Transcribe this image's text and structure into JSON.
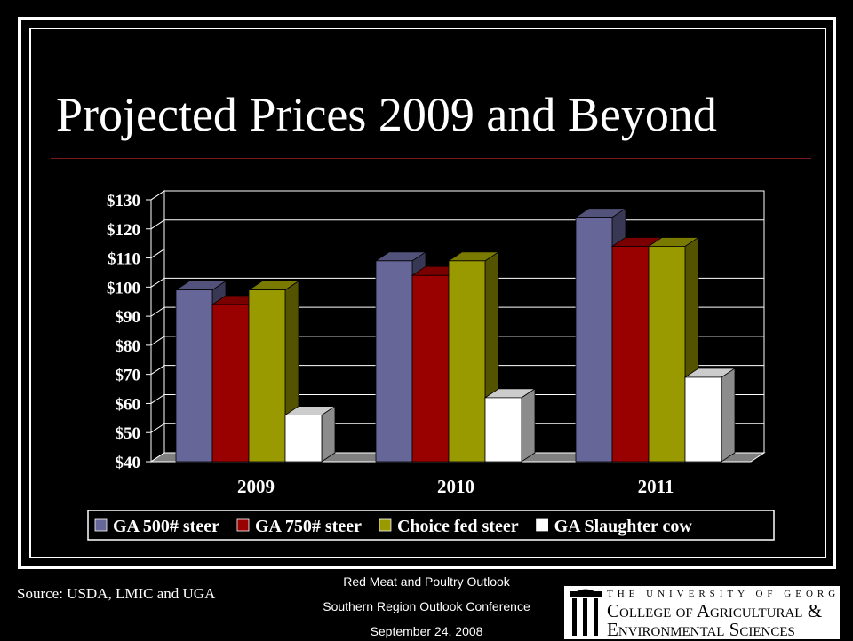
{
  "slide": {
    "title": "Projected Prices 2009 and Beyond",
    "source": "Source: USDA, LMIC and UGA",
    "conference": {
      "line1": "Red Meat and Poultry Outlook",
      "line2": "Southern Region Outlook Conference",
      "line3": "September 24, 2008"
    },
    "logo": {
      "line1": "THE UNIVERSITY OF GEORGIA",
      "line2": "College of Agricultural &",
      "line3": "Environmental Sciences"
    }
  },
  "chart_data": {
    "type": "bar",
    "categories": [
      "2009",
      "2010",
      "2011"
    ],
    "series": [
      {
        "name": "GA 500# steer",
        "values": [
          99,
          109,
          124
        ],
        "color": "#666699"
      },
      {
        "name": "GA 750# steer",
        "values": [
          94,
          104,
          114
        ],
        "color": "#990000"
      },
      {
        "name": "Choice fed steer",
        "values": [
          99,
          109,
          114
        ],
        "color": "#999900"
      },
      {
        "name": "GA Slaughter cow",
        "values": [
          56,
          62,
          69
        ],
        "color": "#ffffff"
      }
    ],
    "ylim": [
      40,
      130
    ],
    "yticks": [
      "$40",
      "$50",
      "$60",
      "$70",
      "$80",
      "$90",
      "$100",
      "$110",
      "$120",
      "$130"
    ],
    "grid": true,
    "legend_position": "bottom"
  }
}
